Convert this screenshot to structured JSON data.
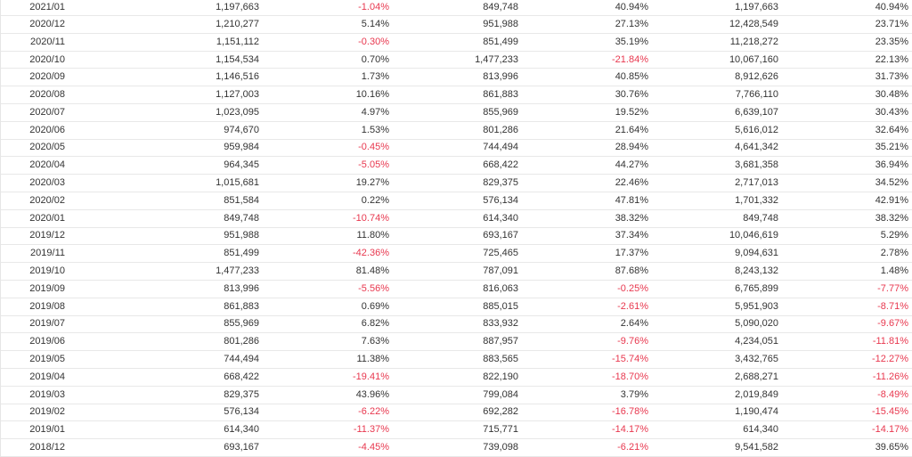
{
  "colors": {
    "text": "#333333",
    "negative": "#e8384f",
    "border": "#e8e8e8"
  },
  "rows": [
    {
      "month": "2021/01",
      "v1": "1,197,663",
      "p1": "-1.04%",
      "v2": "849,748",
      "p2": "40.94%",
      "v3": "1,197,663",
      "p3": "40.94%"
    },
    {
      "month": "2020/12",
      "v1": "1,210,277",
      "p1": "5.14%",
      "v2": "951,988",
      "p2": "27.13%",
      "v3": "12,428,549",
      "p3": "23.71%"
    },
    {
      "month": "2020/11",
      "v1": "1,151,112",
      "p1": "-0.30%",
      "v2": "851,499",
      "p2": "35.19%",
      "v3": "11,218,272",
      "p3": "23.35%"
    },
    {
      "month": "2020/10",
      "v1": "1,154,534",
      "p1": "0.70%",
      "v2": "1,477,233",
      "p2": "-21.84%",
      "v3": "10,067,160",
      "p3": "22.13%"
    },
    {
      "month": "2020/09",
      "v1": "1,146,516",
      "p1": "1.73%",
      "v2": "813,996",
      "p2": "40.85%",
      "v3": "8,912,626",
      "p3": "31.73%"
    },
    {
      "month": "2020/08",
      "v1": "1,127,003",
      "p1": "10.16%",
      "v2": "861,883",
      "p2": "30.76%",
      "v3": "7,766,110",
      "p3": "30.48%"
    },
    {
      "month": "2020/07",
      "v1": "1,023,095",
      "p1": "4.97%",
      "v2": "855,969",
      "p2": "19.52%",
      "v3": "6,639,107",
      "p3": "30.43%"
    },
    {
      "month": "2020/06",
      "v1": "974,670",
      "p1": "1.53%",
      "v2": "801,286",
      "p2": "21.64%",
      "v3": "5,616,012",
      "p3": "32.64%"
    },
    {
      "month": "2020/05",
      "v1": "959,984",
      "p1": "-0.45%",
      "v2": "744,494",
      "p2": "28.94%",
      "v3": "4,641,342",
      "p3": "35.21%"
    },
    {
      "month": "2020/04",
      "v1": "964,345",
      "p1": "-5.05%",
      "v2": "668,422",
      "p2": "44.27%",
      "v3": "3,681,358",
      "p3": "36.94%"
    },
    {
      "month": "2020/03",
      "v1": "1,015,681",
      "p1": "19.27%",
      "v2": "829,375",
      "p2": "22.46%",
      "v3": "2,717,013",
      "p3": "34.52%"
    },
    {
      "month": "2020/02",
      "v1": "851,584",
      "p1": "0.22%",
      "v2": "576,134",
      "p2": "47.81%",
      "v3": "1,701,332",
      "p3": "42.91%"
    },
    {
      "month": "2020/01",
      "v1": "849,748",
      "p1": "-10.74%",
      "v2": "614,340",
      "p2": "38.32%",
      "v3": "849,748",
      "p3": "38.32%"
    },
    {
      "month": "2019/12",
      "v1": "951,988",
      "p1": "11.80%",
      "v2": "693,167",
      "p2": "37.34%",
      "v3": "10,046,619",
      "p3": "5.29%"
    },
    {
      "month": "2019/11",
      "v1": "851,499",
      "p1": "-42.36%",
      "v2": "725,465",
      "p2": "17.37%",
      "v3": "9,094,631",
      "p3": "2.78%"
    },
    {
      "month": "2019/10",
      "v1": "1,477,233",
      "p1": "81.48%",
      "v2": "787,091",
      "p2": "87.68%",
      "v3": "8,243,132",
      "p3": "1.48%"
    },
    {
      "month": "2019/09",
      "v1": "813,996",
      "p1": "-5.56%",
      "v2": "816,063",
      "p2": "-0.25%",
      "v3": "6,765,899",
      "p3": "-7.77%"
    },
    {
      "month": "2019/08",
      "v1": "861,883",
      "p1": "0.69%",
      "v2": "885,015",
      "p2": "-2.61%",
      "v3": "5,951,903",
      "p3": "-8.71%"
    },
    {
      "month": "2019/07",
      "v1": "855,969",
      "p1": "6.82%",
      "v2": "833,932",
      "p2": "2.64%",
      "v3": "5,090,020",
      "p3": "-9.67%"
    },
    {
      "month": "2019/06",
      "v1": "801,286",
      "p1": "7.63%",
      "v2": "887,957",
      "p2": "-9.76%",
      "v3": "4,234,051",
      "p3": "-11.81%"
    },
    {
      "month": "2019/05",
      "v1": "744,494",
      "p1": "11.38%",
      "v2": "883,565",
      "p2": "-15.74%",
      "v3": "3,432,765",
      "p3": "-12.27%"
    },
    {
      "month": "2019/04",
      "v1": "668,422",
      "p1": "-19.41%",
      "v2": "822,190",
      "p2": "-18.70%",
      "v3": "2,688,271",
      "p3": "-11.26%"
    },
    {
      "month": "2019/03",
      "v1": "829,375",
      "p1": "43.96%",
      "v2": "799,084",
      "p2": "3.79%",
      "v3": "2,019,849",
      "p3": "-8.49%"
    },
    {
      "month": "2019/02",
      "v1": "576,134",
      "p1": "-6.22%",
      "v2": "692,282",
      "p2": "-16.78%",
      "v3": "1,190,474",
      "p3": "-15.45%"
    },
    {
      "month": "2019/01",
      "v1": "614,340",
      "p1": "-11.37%",
      "v2": "715,771",
      "p2": "-14.17%",
      "v3": "614,340",
      "p3": "-14.17%"
    },
    {
      "month": "2018/12",
      "v1": "693,167",
      "p1": "-4.45%",
      "v2": "739,098",
      "p2": "-6.21%",
      "v3": "9,541,582",
      "p3": "39.65%"
    }
  ]
}
